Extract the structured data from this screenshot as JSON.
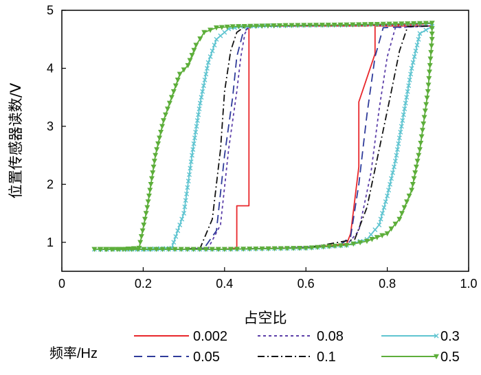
{
  "chart_data": {
    "type": "line",
    "xlabel": "占空比",
    "ylabel": "位置传感器读数/V",
    "xlim": [
      0,
      1.0
    ],
    "ylim": [
      0.5,
      5
    ],
    "xticks": [
      0,
      0.2,
      0.4,
      0.6,
      0.8,
      1.0
    ],
    "xtick_labels": [
      "0",
      "0.2",
      "0.4",
      "0.6",
      "0.8",
      "1.0"
    ],
    "yticks": [
      1,
      2,
      3,
      4,
      5
    ],
    "ytick_labels": [
      "1",
      "2",
      "3",
      "4",
      "5"
    ],
    "grid": false,
    "legend": {
      "title": "频率/Hz",
      "placement": "below"
    },
    "series": [
      {
        "name": "0.002",
        "color": "#e8262a",
        "dash": "solid",
        "marker": "none",
        "points": [
          [
            0.1,
            0.88
          ],
          [
            0.2,
            0.88
          ],
          [
            0.3,
            0.88
          ],
          [
            0.4,
            0.88
          ],
          [
            0.43,
            0.9
          ],
          [
            0.43,
            1.63
          ],
          [
            0.46,
            1.63
          ],
          [
            0.46,
            4.7
          ],
          [
            0.47,
            4.73
          ],
          [
            0.55,
            4.73
          ],
          [
            0.6,
            4.73
          ],
          [
            0.7,
            4.73
          ],
          [
            0.75,
            4.73
          ],
          [
            0.76,
            4.74
          ],
          [
            0.88,
            4.76
          ],
          [
            0.91,
            4.78
          ],
          [
            0.91,
            4.73
          ],
          [
            0.77,
            4.73
          ],
          [
            0.77,
            4.25
          ],
          [
            0.73,
            3.42
          ],
          [
            0.73,
            2.3
          ],
          [
            0.71,
            1.15
          ],
          [
            0.7,
            0.97
          ],
          [
            0.6,
            0.9
          ],
          [
            0.55,
            0.9
          ],
          [
            0.4,
            0.88
          ],
          [
            0.1,
            0.88
          ]
        ]
      },
      {
        "name": "0.05",
        "color": "#2f3b9a",
        "dash": "long-dash",
        "marker": "none",
        "points": [
          [
            0.1,
            0.88
          ],
          [
            0.3,
            0.88
          ],
          [
            0.35,
            0.9
          ],
          [
            0.38,
            1.2
          ],
          [
            0.4,
            2.5
          ],
          [
            0.42,
            3.5
          ],
          [
            0.43,
            4.2
          ],
          [
            0.445,
            4.6
          ],
          [
            0.46,
            4.72
          ],
          [
            0.6,
            4.74
          ],
          [
            0.8,
            4.76
          ],
          [
            0.91,
            4.78
          ],
          [
            0.91,
            4.73
          ],
          [
            0.79,
            4.7
          ],
          [
            0.77,
            4.2
          ],
          [
            0.75,
            3.2
          ],
          [
            0.73,
            2.0
          ],
          [
            0.71,
            1.1
          ],
          [
            0.68,
            0.93
          ],
          [
            0.55,
            0.9
          ],
          [
            0.4,
            0.88
          ],
          [
            0.1,
            0.88
          ]
        ]
      },
      {
        "name": "0.08",
        "color": "#5b3ea8",
        "dash": "short-dash",
        "marker": "none",
        "points": [
          [
            0.1,
            0.88
          ],
          [
            0.3,
            0.88
          ],
          [
            0.36,
            0.9
          ],
          [
            0.39,
            1.3
          ],
          [
            0.41,
            2.6
          ],
          [
            0.43,
            3.6
          ],
          [
            0.44,
            4.2
          ],
          [
            0.45,
            4.6
          ],
          [
            0.46,
            4.72
          ],
          [
            0.6,
            4.74
          ],
          [
            0.8,
            4.76
          ],
          [
            0.91,
            4.78
          ],
          [
            0.91,
            4.73
          ],
          [
            0.82,
            4.7
          ],
          [
            0.8,
            4.2
          ],
          [
            0.78,
            3.3
          ],
          [
            0.76,
            2.2
          ],
          [
            0.73,
            1.2
          ],
          [
            0.7,
            0.95
          ],
          [
            0.55,
            0.9
          ],
          [
            0.4,
            0.88
          ],
          [
            0.1,
            0.88
          ]
        ]
      },
      {
        "name": "0.1",
        "color": "#111111",
        "dash": "dash-dot",
        "marker": "none",
        "points": [
          [
            0.1,
            0.88
          ],
          [
            0.3,
            0.88
          ],
          [
            0.34,
            0.9
          ],
          [
            0.37,
            1.4
          ],
          [
            0.39,
            2.6
          ],
          [
            0.4,
            3.6
          ],
          [
            0.415,
            4.3
          ],
          [
            0.43,
            4.62
          ],
          [
            0.45,
            4.72
          ],
          [
            0.6,
            4.74
          ],
          [
            0.8,
            4.76
          ],
          [
            0.91,
            4.78
          ],
          [
            0.91,
            4.73
          ],
          [
            0.85,
            4.72
          ],
          [
            0.83,
            4.3
          ],
          [
            0.81,
            3.6
          ],
          [
            0.78,
            2.6
          ],
          [
            0.75,
            1.6
          ],
          [
            0.72,
            1.05
          ],
          [
            0.6,
            0.9
          ],
          [
            0.4,
            0.88
          ],
          [
            0.1,
            0.88
          ]
        ]
      },
      {
        "name": "0.3",
        "color": "#5ec4d0",
        "dash": "solid",
        "marker": "x",
        "points": [
          [
            0.08,
            0.88
          ],
          [
            0.2,
            0.88
          ],
          [
            0.27,
            0.9
          ],
          [
            0.3,
            1.5
          ],
          [
            0.32,
            2.5
          ],
          [
            0.34,
            3.4
          ],
          [
            0.36,
            4.1
          ],
          [
            0.38,
            4.5
          ],
          [
            0.41,
            4.68
          ],
          [
            0.44,
            4.72
          ],
          [
            0.55,
            4.74
          ],
          [
            0.7,
            4.75
          ],
          [
            0.85,
            4.77
          ],
          [
            0.91,
            4.78
          ],
          [
            0.91,
            4.72
          ],
          [
            0.88,
            4.6
          ],
          [
            0.86,
            4.0
          ],
          [
            0.84,
            3.2
          ],
          [
            0.82,
            2.4
          ],
          [
            0.8,
            1.8
          ],
          [
            0.78,
            1.3
          ],
          [
            0.75,
            1.05
          ],
          [
            0.7,
            0.95
          ],
          [
            0.6,
            0.9
          ],
          [
            0.4,
            0.88
          ],
          [
            0.08,
            0.88
          ]
        ]
      },
      {
        "name": "0.5",
        "color": "#5dae3a",
        "dash": "solid",
        "marker": "triangle-down",
        "points": [
          [
            0.08,
            0.88
          ],
          [
            0.15,
            0.88
          ],
          [
            0.19,
            0.9
          ],
          [
            0.21,
            1.6
          ],
          [
            0.23,
            2.5
          ],
          [
            0.25,
            3.1
          ],
          [
            0.27,
            3.5
          ],
          [
            0.29,
            3.9
          ],
          [
            0.31,
            4.05
          ],
          [
            0.33,
            4.4
          ],
          [
            0.35,
            4.62
          ],
          [
            0.38,
            4.7
          ],
          [
            0.42,
            4.72
          ],
          [
            0.55,
            4.74
          ],
          [
            0.7,
            4.75
          ],
          [
            0.85,
            4.77
          ],
          [
            0.91,
            4.78
          ],
          [
            0.91,
            4.5
          ],
          [
            0.9,
            3.6
          ],
          [
            0.88,
            2.6
          ],
          [
            0.86,
            1.9
          ],
          [
            0.83,
            1.4
          ],
          [
            0.8,
            1.15
          ],
          [
            0.75,
            1.02
          ],
          [
            0.7,
            0.95
          ],
          [
            0.6,
            0.9
          ],
          [
            0.4,
            0.88
          ],
          [
            0.08,
            0.88
          ]
        ]
      }
    ]
  }
}
